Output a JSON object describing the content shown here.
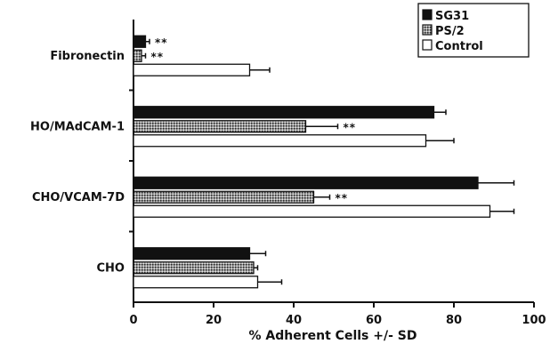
{
  "chart_data": {
    "type": "bar",
    "orientation": "horizontal",
    "categories": [
      "Fibronectin",
      "HO/MAdCAM-1",
      "CHO/VCAM-7D",
      "CHO"
    ],
    "xlabel": "% Adherent Cells +/- SD",
    "ylabel": "",
    "xlim": [
      0,
      100
    ],
    "xticks": [
      0,
      20,
      40,
      60,
      80,
      100
    ],
    "legend_position": "top-right",
    "series": [
      {
        "name": "SG31",
        "fill": "solid-black",
        "values": [
          3,
          75,
          86,
          29
        ],
        "errors": [
          1,
          3,
          9,
          4
        ],
        "significance": [
          "**",
          "",
          "",
          ""
        ]
      },
      {
        "name": "PS/2",
        "fill": "dotted-gray",
        "values": [
          2,
          43,
          45,
          30
        ],
        "errors": [
          1,
          8,
          4,
          1
        ],
        "significance": [
          "**",
          "**",
          "**",
          ""
        ]
      },
      {
        "name": "Control",
        "fill": "white",
        "values": [
          29,
          73,
          89,
          31
        ],
        "errors": [
          5,
          7,
          6,
          6
        ],
        "significance": [
          "",
          "",
          "",
          ""
        ]
      }
    ]
  }
}
